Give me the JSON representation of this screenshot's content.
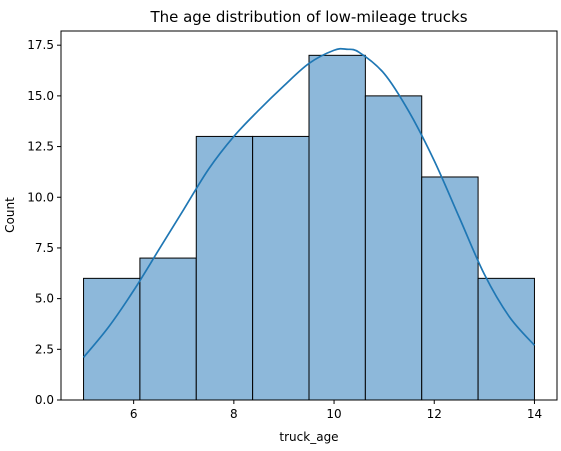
{
  "chart_data": {
    "type": "bar",
    "title": "The age distribution of low-mileage trucks",
    "xlabel": "truck_age",
    "ylabel": "Count",
    "xlim": [
      4.55,
      14.45
    ],
    "ylim": [
      0,
      18.2
    ],
    "xticks": [
      6,
      8,
      10,
      12,
      14
    ],
    "xtick_labels": [
      "6",
      "8",
      "10",
      "12",
      "14"
    ],
    "yticks": [
      0,
      2.5,
      5,
      7.5,
      10,
      12.5,
      15,
      17.5
    ],
    "ytick_labels": [
      "0.0",
      "2.5",
      "5.0",
      "7.5",
      "10.0",
      "12.5",
      "15.0",
      "17.5"
    ],
    "bins": [
      {
        "start": 5.0,
        "end": 6.125,
        "count": 6
      },
      {
        "start": 6.125,
        "end": 7.25,
        "count": 7
      },
      {
        "start": 7.25,
        "end": 8.375,
        "count": 13
      },
      {
        "start": 8.375,
        "end": 9.5,
        "count": 13
      },
      {
        "start": 9.5,
        "end": 10.625,
        "count": 17
      },
      {
        "start": 10.625,
        "end": 11.75,
        "count": 15
      },
      {
        "start": 11.75,
        "end": 12.875,
        "count": 11
      },
      {
        "start": 12.875,
        "end": 14.0,
        "count": 6
      }
    ],
    "kde": {
      "x": [
        5.0,
        5.5,
        6.0,
        6.5,
        7.0,
        7.5,
        8.0,
        8.5,
        9.0,
        9.5,
        10.0,
        10.25,
        10.5,
        11.0,
        11.5,
        12.0,
        12.5,
        13.0,
        13.5,
        14.0
      ],
      "y": [
        2.1,
        3.6,
        5.4,
        7.4,
        9.4,
        11.4,
        13.0,
        14.3,
        15.5,
        16.6,
        17.25,
        17.3,
        17.15,
        16.1,
        14.2,
        11.8,
        9.0,
        6.2,
        4.1,
        2.7
      ]
    },
    "grid": false,
    "colors": {
      "bar_fill": "#8db8da",
      "bar_edge": "#000000",
      "kde_line": "#1f77b4"
    }
  }
}
